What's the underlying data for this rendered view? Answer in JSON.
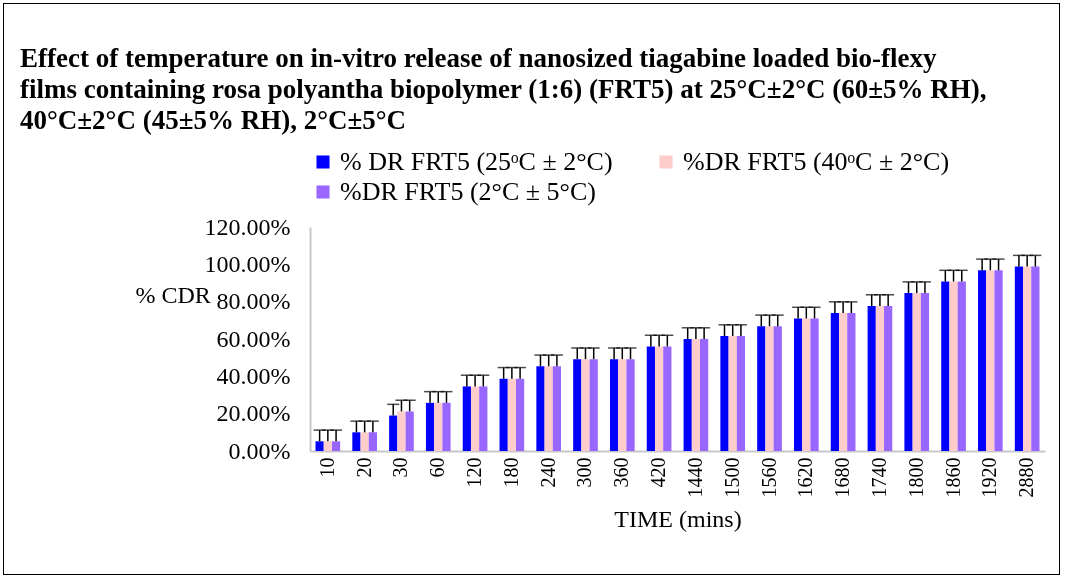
{
  "chart_data": {
    "type": "bar",
    "title": "Effect of temperature on in-vitro release of nanosized tiagabine loaded bio-flexy films containing rosa polyantha biopolymer (1:6) (FRT5) at 25°C±2°C (60±5% RH), 40°C±2°C (45±5% RH), 2°C±5°C",
    "xlabel": "TIME (mins)",
    "ylabel": "% CDR",
    "categories": [
      "10",
      "20",
      "30",
      "60",
      "120",
      "180",
      "240",
      "300",
      "360",
      "420",
      "1440",
      "1500",
      "1560",
      "1620",
      "1680",
      "1740",
      "1800",
      "1860",
      "1920",
      "2880"
    ],
    "series": [
      {
        "name": "% DR FRT5 (25ᵒC ± 2°C)",
        "color": "#0000ff",
        "values": [
          5.2,
          10,
          19,
          25.8,
          34.6,
          38.7,
          45.4,
          49.2,
          49.2,
          56,
          60,
          61.6,
          66.8,
          71,
          73.9,
          77.7,
          84.6,
          90.8,
          96.8,
          98.8
        ],
        "errors": [
          6,
          6,
          6,
          6,
          6,
          6,
          6,
          6,
          6,
          6,
          6,
          6,
          6,
          6,
          6,
          6,
          6,
          6,
          6,
          6
        ]
      },
      {
        "name": "%DR FRT5 (40ᵒC ± 2°C)",
        "color": "#ffcccc",
        "values": [
          5.2,
          10,
          21.2,
          25.8,
          34.6,
          38.7,
          45.4,
          49.2,
          49.2,
          56,
          60,
          61.6,
          66.8,
          71,
          73.9,
          77.7,
          84.6,
          90.8,
          96.8,
          98.8
        ],
        "errors": [
          6,
          6,
          6,
          6,
          6,
          6,
          6,
          6,
          6,
          6,
          6,
          6,
          6,
          6,
          6,
          6,
          6,
          6,
          6,
          6
        ]
      },
      {
        "name": "%DR FRT5 (2°C ± 5°C)",
        "color": "#9966ff",
        "values": [
          5.2,
          10,
          21.2,
          25.8,
          34.6,
          38.7,
          45.4,
          49.2,
          49.2,
          56,
          60,
          61.6,
          66.8,
          71,
          73.9,
          77.7,
          84.6,
          90.8,
          96.8,
          98.8
        ],
        "errors": [
          6,
          6,
          6,
          6,
          6,
          6,
          6,
          6,
          6,
          6,
          6,
          6,
          6,
          6,
          6,
          6,
          6,
          6,
          6,
          6
        ]
      }
    ],
    "ylim": [
      0,
      120
    ],
    "yticks": [
      {
        "value": 0,
        "label": "0.00%"
      },
      {
        "value": 20,
        "label": "20.00%"
      },
      {
        "value": 40,
        "label": "40.00%"
      },
      {
        "value": 60,
        "label": "60.00%"
      },
      {
        "value": 80,
        "label": "80.00%"
      },
      {
        "value": 100,
        "label": "100.00%"
      },
      {
        "value": 120,
        "label": "120.00%"
      }
    ],
    "grid": false,
    "legend": "top"
  }
}
